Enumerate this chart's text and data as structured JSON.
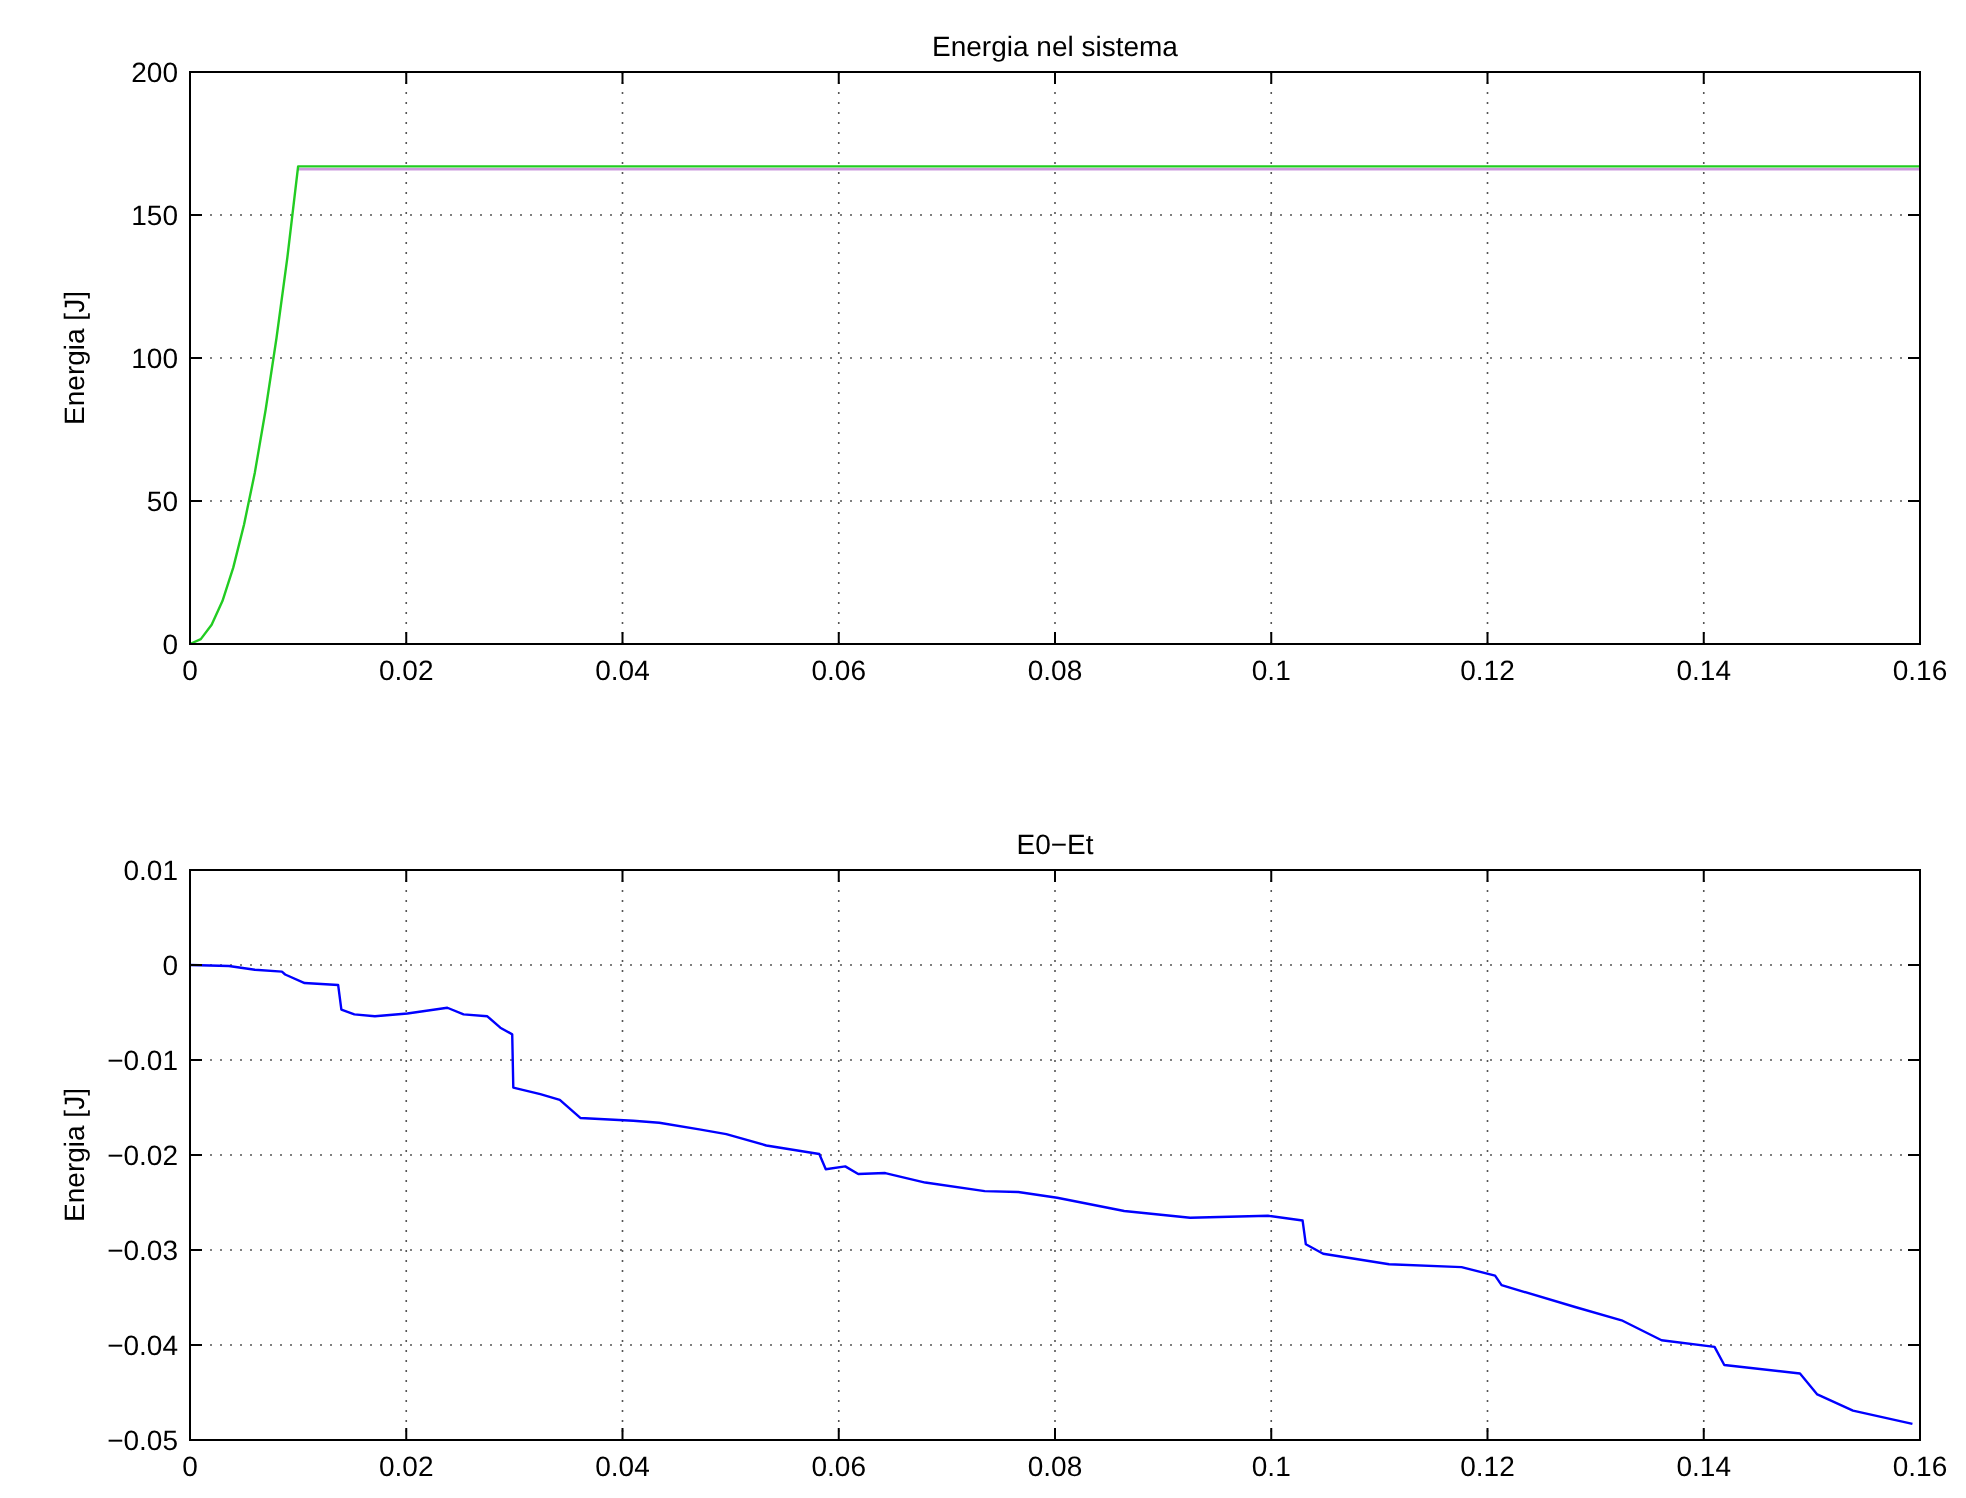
{
  "chart_data": [
    {
      "type": "line",
      "title": "Energia nel sistema",
      "ylabel": "Energia [J]",
      "xlim": [
        0,
        0.16
      ],
      "ylim": [
        0,
        200
      ],
      "xticks": [
        0,
        0.02,
        0.04,
        0.06,
        0.08,
        0.1,
        0.12,
        0.14,
        0.16
      ],
      "yticks": [
        0,
        50,
        100,
        150,
        200
      ],
      "grid": true,
      "x": [
        0,
        0.001,
        0.002,
        0.003,
        0.004,
        0.005,
        0.006,
        0.007,
        0.008,
        0.009,
        0.01,
        0.16
      ],
      "series": [
        {
          "color": "#cc99dd",
          "x": [
            0.01,
            0.16
          ],
          "values": [
            166,
            166
          ]
        },
        {
          "color": "#22cc22",
          "values": [
            0,
            1.7,
            6.7,
            15,
            26.7,
            41.8,
            60,
            82,
            107,
            135,
            167,
            167
          ]
        }
      ]
    },
    {
      "type": "line",
      "title": "E0−Et",
      "ylabel": "Energia [J]",
      "xlim": [
        0,
        0.16
      ],
      "ylim": [
        -0.05,
        0.01
      ],
      "xticks": [
        0,
        0.02,
        0.04,
        0.06,
        0.08,
        0.1,
        0.12,
        0.14,
        0.16
      ],
      "yticks": [
        -0.05,
        -0.04,
        -0.03,
        -0.02,
        -0.01,
        0,
        0.01
      ],
      "grid": true,
      "x": [
        0,
        0.0036,
        0.006,
        0.0085,
        0.0088,
        0.0106,
        0.0137,
        0.014,
        0.0152,
        0.0171,
        0.0201,
        0.0238,
        0.0253,
        0.0275,
        0.0287,
        0.0298,
        0.0299,
        0.0324,
        0.0342,
        0.0361,
        0.041,
        0.0434,
        0.0471,
        0.0496,
        0.0533,
        0.0582,
        0.0588,
        0.0606,
        0.0618,
        0.0643,
        0.068,
        0.0735,
        0.0766,
        0.0802,
        0.0864,
        0.0925,
        0.0997,
        0.1029,
        0.1032,
        0.1048,
        0.1109,
        0.1176,
        0.1207,
        0.1213,
        0.1281,
        0.1324,
        0.1361,
        0.141,
        0.1419,
        0.1489,
        0.1505,
        0.1538,
        0.1593
      ],
      "series": [
        {
          "color": "#0000ff",
          "values": [
            0,
            -0.0001,
            -0.0005,
            -0.0007,
            -0.001,
            -0.0019,
            -0.0021,
            -0.0047,
            -0.0052,
            -0.0054,
            -0.0051,
            -0.0045,
            -0.0052,
            -0.0054,
            -0.0066,
            -0.0073,
            -0.0129,
            -0.0136,
            -0.0142,
            -0.0161,
            -0.0164,
            -0.0166,
            -0.0173,
            -0.0178,
            -0.019,
            -0.0199,
            -0.0215,
            -0.0212,
            -0.022,
            -0.0219,
            -0.0229,
            -0.0238,
            -0.0239,
            -0.0245,
            -0.0259,
            -0.0266,
            -0.0264,
            -0.0269,
            -0.0294,
            -0.0304,
            -0.0315,
            -0.0318,
            -0.0327,
            -0.0337,
            -0.036,
            -0.0374,
            -0.0395,
            -0.0402,
            -0.0421,
            -0.043,
            -0.0452,
            -0.0469,
            -0.0483
          ]
        }
      ]
    }
  ]
}
